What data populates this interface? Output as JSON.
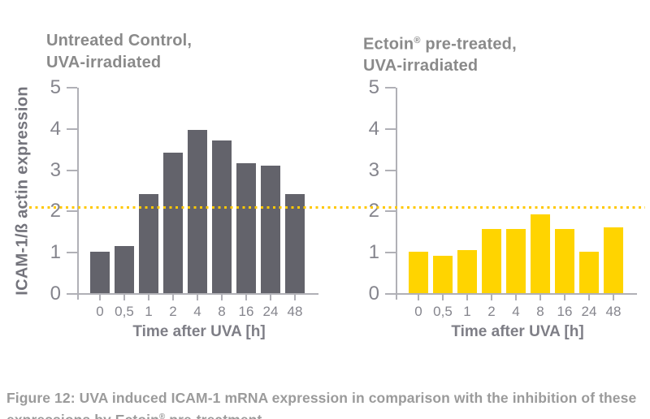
{
  "figure": {
    "caption": "Figure 12: UVA induced ICAM-1 mRNA expression in comparison with the inhibition of these expressions by Ectoin® pre-treatment."
  },
  "reference_line": {
    "value": 2.1,
    "color": "#FFC800",
    "style": "dotted"
  },
  "chart_data": [
    {
      "type": "bar",
      "title_lines": [
        "Untreated Control,",
        "UVA-irradiated"
      ],
      "categories": [
        "0",
        "0,5",
        "1",
        "2",
        "4",
        "8",
        "16",
        "24",
        "48"
      ],
      "values": [
        1.0,
        1.15,
        2.4,
        3.4,
        3.95,
        3.7,
        3.15,
        3.1,
        2.4
      ],
      "bar_color": "#63636B",
      "xlabel": "Time after UVA [h]",
      "ylabel": "ICAM-1/ß actin expression",
      "ylim": [
        0,
        5
      ],
      "yticks": [
        0,
        1,
        2,
        3,
        4,
        5
      ],
      "grid": false,
      "legend": "none"
    },
    {
      "type": "bar",
      "title_lines": [
        "Ectoin® pre-treated,",
        "UVA-irradiated"
      ],
      "categories": [
        "0",
        "0,5",
        "1",
        "2",
        "4",
        "8",
        "16",
        "24",
        "48"
      ],
      "values": [
        1.0,
        0.9,
        1.05,
        1.55,
        1.55,
        1.9,
        1.55,
        1.0,
        1.6
      ],
      "bar_color": "#FFD400",
      "xlabel": "Time after UVA [h]",
      "ylabel": "ICAM-1/ß actin expression",
      "ylim": [
        0,
        5
      ],
      "yticks": [
        0,
        1,
        2,
        3,
        4,
        5
      ],
      "grid": false,
      "legend": "none"
    }
  ],
  "colors": {
    "bar_gray": "#63636B",
    "bar_yellow": "#FFD400",
    "reference_yellow": "#FFC800",
    "title_gray": "#8A8A8A",
    "axis_gray": "#B0B0B6",
    "tick_label_gray": "#85858D",
    "caption_gray": "#9B9B9B",
    "background": "#FFFFFF"
  }
}
